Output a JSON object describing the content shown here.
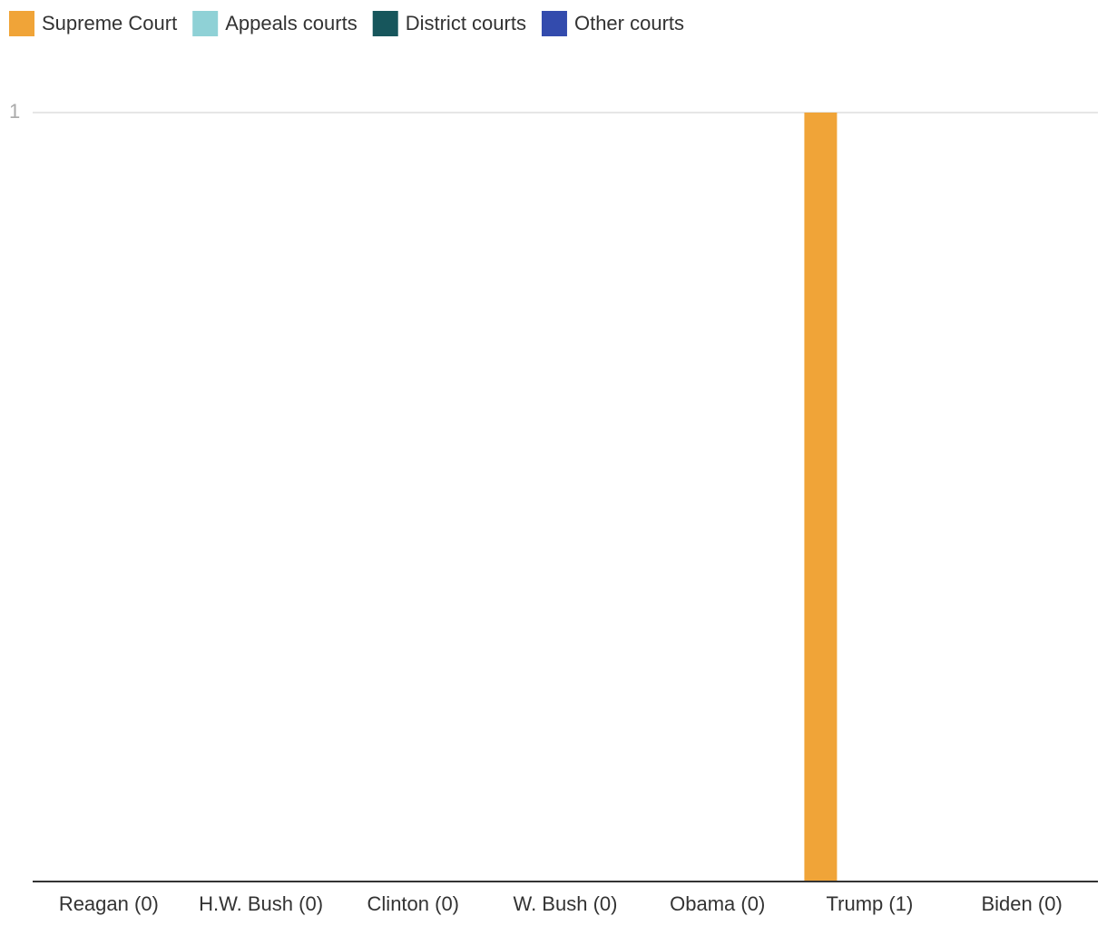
{
  "chart_data": {
    "type": "bar",
    "categories": [
      "Reagan (0)",
      "H.W. Bush (0)",
      "Clinton (0)",
      "W. Bush (0)",
      "Obama (0)",
      "Trump (1)",
      "Biden (0)"
    ],
    "series": [
      {
        "name": "Supreme Court",
        "color": "#f0a438",
        "values": [
          0,
          0,
          0,
          0,
          0,
          1,
          0
        ]
      },
      {
        "name": "Appeals courts",
        "color": "#8fd1d6",
        "values": [
          0,
          0,
          0,
          0,
          0,
          0,
          0
        ]
      },
      {
        "name": "District courts",
        "color": "#17565c",
        "values": [
          0,
          0,
          0,
          0,
          0,
          0,
          0
        ]
      },
      {
        "name": "Other courts",
        "color": "#334bad",
        "values": [
          0,
          0,
          0,
          0,
          0,
          0,
          0
        ]
      }
    ],
    "ylim": [
      0,
      1
    ],
    "yticks": [
      1
    ],
    "grid": true,
    "legend": "top"
  }
}
